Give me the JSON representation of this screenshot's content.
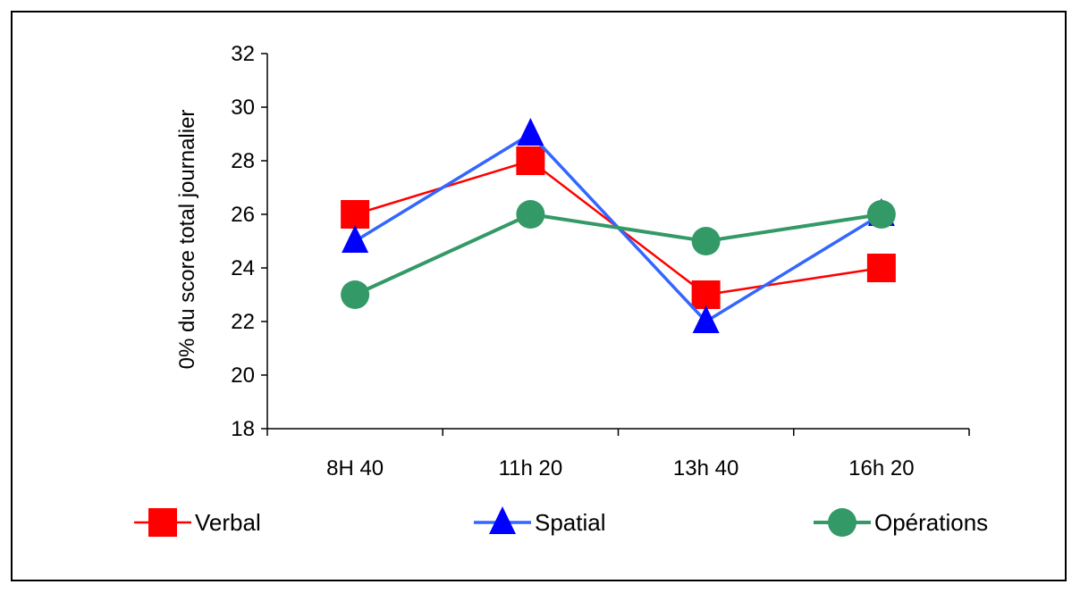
{
  "chart_data": {
    "type": "line",
    "title": "",
    "xlabel": "",
    "ylabel": "0% du score total journalier",
    "categories": [
      "8H 40",
      "11h 20",
      "13h 40",
      "16h 20"
    ],
    "ylim": [
      18,
      32
    ],
    "yticks": [
      18,
      20,
      22,
      24,
      26,
      28,
      30,
      32
    ],
    "grid": false,
    "legend_position": "bottom",
    "series": [
      {
        "name": "Verbal",
        "values": [
          26,
          28,
          23,
          24
        ],
        "color": "#ff0000",
        "marker": "square"
      },
      {
        "name": "Spatial",
        "values": [
          25,
          29,
          22,
          26
        ],
        "color": "#3366ff",
        "marker_color": "#0000ff",
        "marker": "triangle"
      },
      {
        "name": "Opérations",
        "values": [
          23,
          26,
          25,
          26
        ],
        "color": "#339966",
        "marker": "circle"
      }
    ]
  }
}
